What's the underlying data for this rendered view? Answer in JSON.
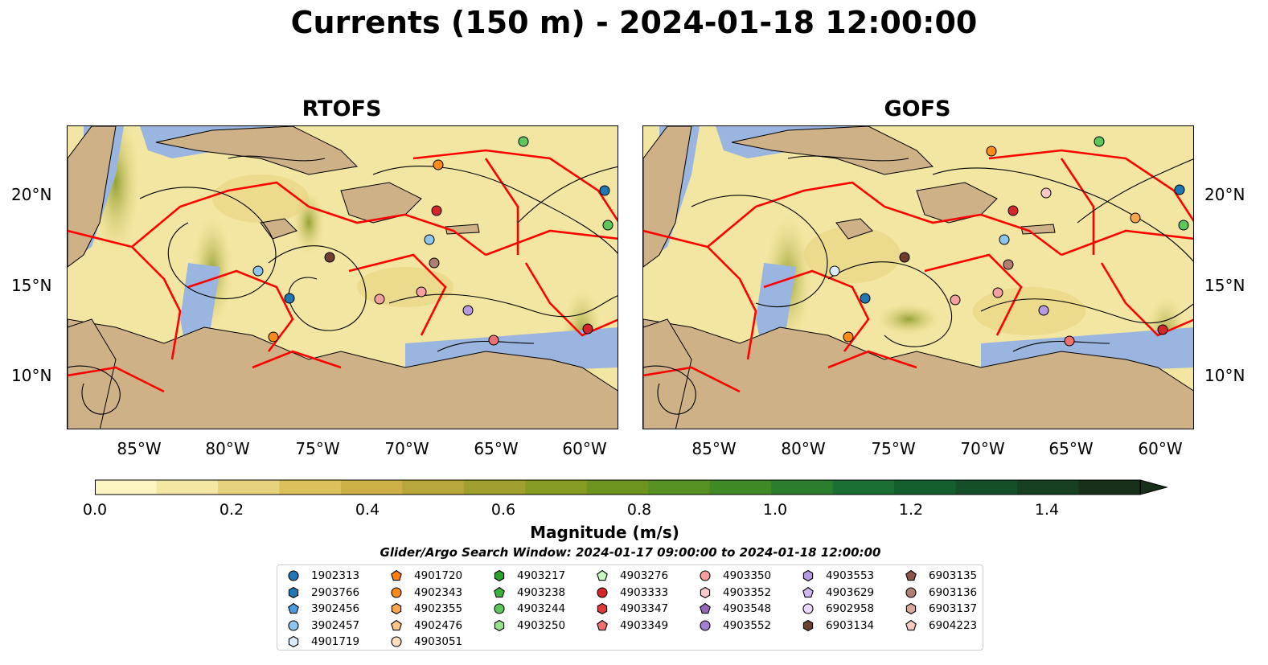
{
  "title": "Currents (150 m) - 2024-01-18 12:00:00",
  "panels": [
    {
      "title": "RTOFS"
    },
    {
      "title": "GOFS"
    }
  ],
  "axes": {
    "lat_labels": [
      "20°N",
      "15°N",
      "10°N"
    ],
    "lon_labels": [
      "85°W",
      "80°W",
      "75°W",
      "70°W",
      "65°W",
      "60°W"
    ]
  },
  "colorbar": {
    "label": "Magnitude (m/s)",
    "ticks": [
      "0.0",
      "0.2",
      "0.4",
      "0.6",
      "0.8",
      "1.0",
      "1.2",
      "1.4"
    ],
    "range": [
      0.0,
      1.5
    ],
    "colors": [
      "#fdf6c3",
      "#f4e6a3",
      "#e7d27e",
      "#dcc05c",
      "#cdb046",
      "#b7a63a",
      "#a0a02e",
      "#869b22",
      "#6e941f",
      "#579022",
      "#3f8a26",
      "#2a7e2d",
      "#1b6e34",
      "#155f2e",
      "#144f2a",
      "#173f22",
      "#18301a"
    ]
  },
  "map_colors": {
    "land": "#cfb188",
    "deep_low": "#fdf3b5",
    "shelf": "#9ab5df",
    "boundary": "#ff0000",
    "streamline": "#000000"
  },
  "search_window": "Glider/Argo Search Window: 2024-01-17 09:00:00 to 2024-01-18 12:00:00",
  "legend": [
    {
      "id": "1902313",
      "marker": "circle",
      "color": "#1f77b4"
    },
    {
      "id": "2903766",
      "marker": "hexagon",
      "color": "#1f77b4"
    },
    {
      "id": "3902456",
      "marker": "pentagon",
      "color": "#4c9be0"
    },
    {
      "id": "3902457",
      "marker": "circle",
      "color": "#8ec4f0"
    },
    {
      "id": "4901719",
      "marker": "hexagon",
      "color": "#d9ecff"
    },
    {
      "id": "4901720",
      "marker": "pentagon",
      "color": "#ff7f0e"
    },
    {
      "id": "4902343",
      "marker": "circle",
      "color": "#ff8c1a"
    },
    {
      "id": "4902355",
      "marker": "hexagon",
      "color": "#ffa64d"
    },
    {
      "id": "4902476",
      "marker": "pentagon",
      "color": "#ffc488"
    },
    {
      "id": "4903051",
      "marker": "circle",
      "color": "#ffe0bf"
    },
    {
      "id": "4903217",
      "marker": "hexagon",
      "color": "#2ca02c"
    },
    {
      "id": "4903238",
      "marker": "pentagon",
      "color": "#3cb43c"
    },
    {
      "id": "4903244",
      "marker": "circle",
      "color": "#5cc85c"
    },
    {
      "id": "4903250",
      "marker": "hexagon",
      "color": "#98df8a"
    },
    {
      "id": "4903276",
      "marker": "pentagon",
      "color": "#c8f5c0"
    },
    {
      "id": "4903333",
      "marker": "circle",
      "color": "#d62728"
    },
    {
      "id": "4903347",
      "marker": "hexagon",
      "color": "#e03a3a"
    },
    {
      "id": "4903349",
      "marker": "pentagon",
      "color": "#f07070"
    },
    {
      "id": "4903350",
      "marker": "circle",
      "color": "#f5a0a0"
    },
    {
      "id": "4903352",
      "marker": "hexagon",
      "color": "#fbc9c9"
    },
    {
      "id": "4903548",
      "marker": "pentagon",
      "color": "#9467bd"
    },
    {
      "id": "4903552",
      "marker": "circle",
      "color": "#a57fd0"
    },
    {
      "id": "4903553",
      "marker": "hexagon",
      "color": "#b89ae0"
    },
    {
      "id": "4903629",
      "marker": "pentagon",
      "color": "#d2b8f0"
    },
    {
      "id": "6902958",
      "marker": "circle",
      "color": "#ead8ff"
    },
    {
      "id": "6903134",
      "marker": "hexagon",
      "color": "#6b4030"
    },
    {
      "id": "6903135",
      "marker": "pentagon",
      "color": "#8c564b"
    },
    {
      "id": "6903136",
      "marker": "circle",
      "color": "#b07f74"
    },
    {
      "id": "6903137",
      "marker": "hexagon",
      "color": "#d8a89c"
    },
    {
      "id": "6904223",
      "marker": "pentagon",
      "color": "#f3cbbf"
    }
  ]
}
